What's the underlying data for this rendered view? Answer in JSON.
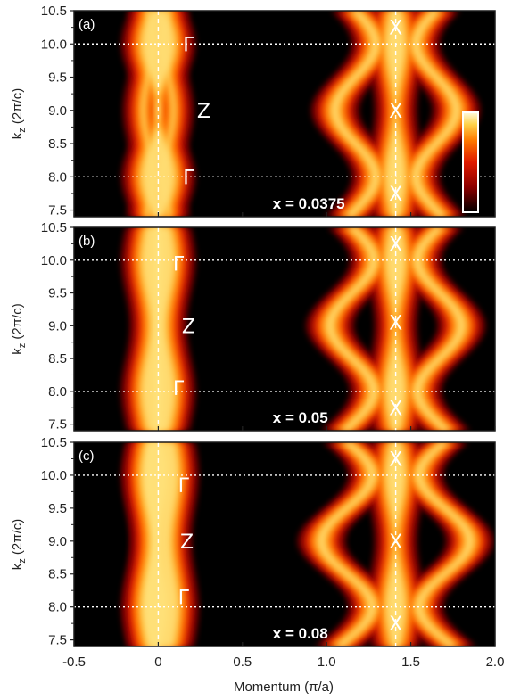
{
  "chart_data": [
    {
      "type": "heatmap",
      "panel_label": "(a)",
      "annotation": "x = 0.0375",
      "xlim": [
        -0.5,
        2.0
      ],
      "ylim": [
        7.4,
        10.5
      ],
      "xticks": [
        "-0.5",
        "0",
        "0.5",
        "1.0",
        "1.5",
        "2.0"
      ],
      "yticks": [
        "7.5",
        "8.0",
        "8.5",
        "9.0",
        "9.5",
        "10.0",
        "10.5"
      ],
      "ylabel_main": "k",
      "ylabel_sub": "z",
      "ylabel_unit": " (2π/c)",
      "ref_lines_kz": [
        8.0,
        10.0
      ],
      "ref_lines_momentum": [
        0.0,
        1.41
      ],
      "points": [
        {
          "label": "Γ",
          "momentum": 0.18,
          "kz": 10.0
        },
        {
          "label": "Z",
          "momentum": 0.27,
          "kz": 9.0
        },
        {
          "label": "Γ",
          "momentum": 0.18,
          "kz": 8.0
        },
        {
          "label": "X",
          "momentum": 1.41,
          "kz": 10.25
        },
        {
          "label": "X",
          "momentum": 1.41,
          "kz": 9.0
        },
        {
          "label": "X",
          "momentum": 1.41,
          "kz": 7.75
        }
      ],
      "colorbar": true
    },
    {
      "type": "heatmap",
      "panel_label": "(b)",
      "annotation": "x = 0.05",
      "xlim": [
        -0.5,
        2.0
      ],
      "ylim": [
        7.4,
        10.5
      ],
      "xticks": [
        "-0.5",
        "0",
        "0.5",
        "1.0",
        "1.5",
        "2.0"
      ],
      "yticks": [
        "7.5",
        "8.0",
        "8.5",
        "9.0",
        "9.5",
        "10.0",
        "10.5"
      ],
      "ylabel_main": "k",
      "ylabel_sub": "z",
      "ylabel_unit": " (2π/c)",
      "ref_lines_kz": [
        8.0,
        10.0
      ],
      "ref_lines_momentum": [
        0.0,
        1.41
      ],
      "points": [
        {
          "label": "Γ",
          "momentum": 0.12,
          "kz": 9.95
        },
        {
          "label": "Z",
          "momentum": 0.18,
          "kz": 9.0
        },
        {
          "label": "Γ",
          "momentum": 0.12,
          "kz": 8.05
        },
        {
          "label": "X",
          "momentum": 1.41,
          "kz": 10.25
        },
        {
          "label": "X",
          "momentum": 1.41,
          "kz": 9.05
        },
        {
          "label": "X",
          "momentum": 1.41,
          "kz": 7.75
        }
      ],
      "colorbar": false
    },
    {
      "type": "heatmap",
      "panel_label": "(c)",
      "annotation": "x = 0.08",
      "xlim": [
        -0.5,
        2.0
      ],
      "ylim": [
        7.4,
        10.5
      ],
      "xticks": [
        "-0.5",
        "0",
        "0.5",
        "1.0",
        "1.5",
        "2.0"
      ],
      "yticks": [
        "7.5",
        "8.0",
        "8.5",
        "9.0",
        "9.5",
        "10.0",
        "10.5"
      ],
      "ylabel_main": "k",
      "ylabel_sub": "z",
      "ylabel_unit": " (2π/c)",
      "ref_lines_kz": [
        8.0,
        10.0
      ],
      "ref_lines_momentum": [
        0.0,
        1.41
      ],
      "points": [
        {
          "label": "Γ",
          "momentum": 0.15,
          "kz": 9.85
        },
        {
          "label": "Z",
          "momentum": 0.17,
          "kz": 9.0
        },
        {
          "label": "Γ",
          "momentum": 0.15,
          "kz": 8.15
        },
        {
          "label": "X",
          "momentum": 1.41,
          "kz": 10.25
        },
        {
          "label": "X",
          "momentum": 1.41,
          "kz": 9.0
        },
        {
          "label": "X",
          "momentum": 1.41,
          "kz": 7.75
        }
      ],
      "colorbar": false
    }
  ],
  "xlabel": "Momentum (π/a)",
  "colormap": [
    "#000000",
    "#8b0000",
    "#e01a00",
    "#ff7a00",
    "#ffd24a",
    "#fffbe0"
  ]
}
